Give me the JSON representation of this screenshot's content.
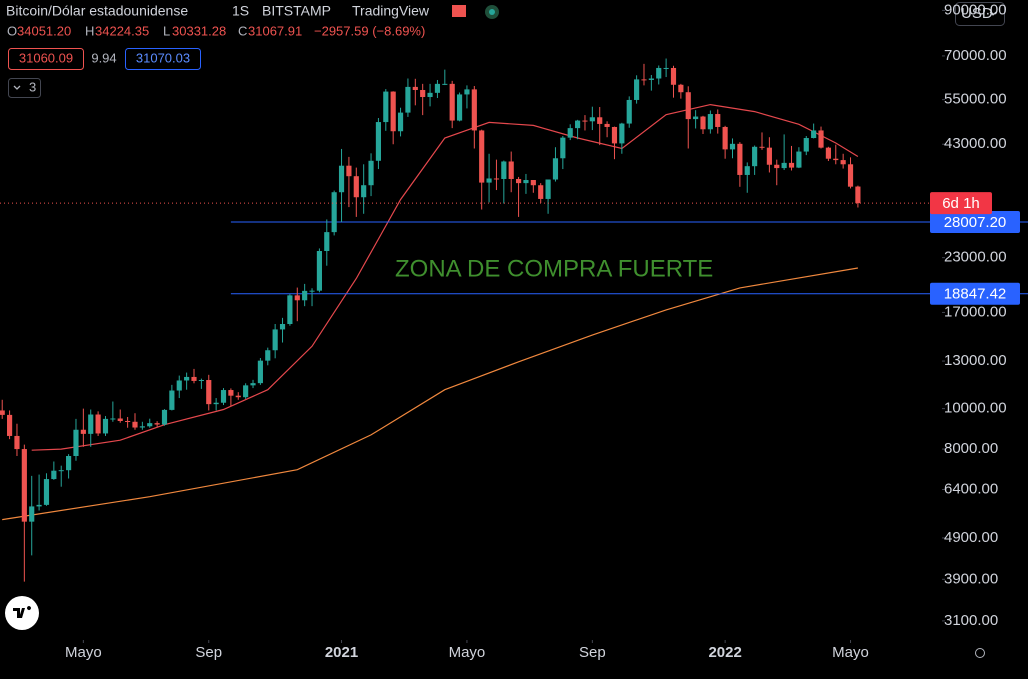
{
  "header": {
    "symbol": "Bitcoin/Dólar estadounidense",
    "interval": "1S",
    "exchange": "BITSTAMP",
    "source": "TradingView",
    "o_label": "O",
    "o_value": "34051.20",
    "h_label": "H",
    "h_value": "34224.35",
    "l_label": "L",
    "l_value": "30331.28",
    "c_label": "C",
    "c_value": "31067.91",
    "change": "−2957.59 (−8.69%)",
    "bid": "31060.09",
    "spread": "9.94",
    "ask": "31070.03",
    "indicator_count": "3",
    "currency": "USD"
  },
  "chart_data": {
    "type": "candlestick",
    "log_scale": true,
    "up_color": "#26a69a",
    "down_color": "#ef5350",
    "annotation": "ZONA DE COMPRA FUERTE",
    "countdown": "6d 1h",
    "ylim": [
      2790,
      95300
    ],
    "yticks": [
      {
        "value": 3100,
        "label": "3100.00"
      },
      {
        "value": 3900,
        "label": "3900.00"
      },
      {
        "value": 4900,
        "label": "4900.00"
      },
      {
        "value": 6400,
        "label": "6400.00"
      },
      {
        "value": 8000,
        "label": "8000.00"
      },
      {
        "value": 10000,
        "label": "10000.00"
      },
      {
        "value": 13000,
        "label": "13000.00"
      },
      {
        "value": 17000,
        "label": "17000.00"
      },
      {
        "value": 23000,
        "label": "23000.00"
      },
      {
        "value": 43000,
        "label": "43000.00"
      },
      {
        "value": 55000,
        "label": "55000.00"
      },
      {
        "value": 70000,
        "label": "70000.00"
      },
      {
        "value": 90000,
        "label": "90000.00"
      }
    ],
    "xlim": [
      -0.3,
      127.4
    ],
    "xticks": [
      {
        "value": 11,
        "label": "Mayo"
      },
      {
        "value": 28,
        "label": "Sep"
      },
      {
        "value": 46,
        "label": "2021"
      },
      {
        "value": 63,
        "label": "Mayo"
      },
      {
        "value": 80,
        "label": "Sep"
      },
      {
        "value": 98,
        "label": "2022"
      },
      {
        "value": 115,
        "label": "Mayo"
      }
    ],
    "open": [
      9900,
      9660,
      8600,
      8000,
      5360,
      5830,
      5880,
      6780,
      7100,
      7120,
      7700,
      8900,
      8700,
      9680,
      8720,
      9450,
      9470,
      9340,
      9300,
      9010,
      9070,
      9230,
      9160,
      9930,
      11050,
      11680,
      11910,
      11650,
      11710,
      10250,
      10330,
      11080,
      10740,
      10650,
      11370,
      11510,
      13030,
      13800,
      15480,
      15950,
      18680,
      18180,
      19150,
      19170,
      23860,
      26480,
      33000,
      38200,
      36050,
      32100,
      34300,
      39250,
      48600,
      57500,
      46200,
      51200,
      59000,
      58000,
      55800,
      57100,
      60000,
      60000,
      49000,
      56600,
      58200,
      46400,
      34800,
      35600,
      35500,
      39100,
      35500,
      34700,
      35300,
      34300,
      31800,
      35400,
      39800,
      44600,
      47000,
      49000,
      48800,
      49900,
      48100,
      47300,
      43200,
      48200,
      54900,
      61500,
      61300,
      61800,
      65500,
      65500,
      59700,
      57300,
      49400,
      50100,
      46700,
      50800,
      47300,
      41800,
      43100,
      36300,
      38100,
      42400,
      42200,
      38400,
      37700,
      38800,
      37800,
      41300,
      44500,
      46400,
      42200,
      39700,
      39400,
      38500,
      34051.2
    ],
    "high": [
      10500,
      9900,
      9200,
      8200,
      6900,
      6950,
      7000,
      7470,
      7300,
      7780,
      9450,
      10000,
      9950,
      9850,
      9600,
      10400,
      9950,
      9550,
      9750,
      9300,
      9460,
      9330,
      9970,
      11400,
      12000,
      12200,
      12450,
      11800,
      12050,
      10600,
      11200,
      11180,
      10950,
      11500,
      11720,
      13220,
      14000,
      15950,
      16500,
      18800,
      19500,
      19900,
      19430,
      24200,
      28400,
      33300,
      41900,
      40100,
      37800,
      38500,
      40900,
      49700,
      58300,
      57600,
      52600,
      61800,
      61700,
      60000,
      60000,
      61300,
      64900,
      61000,
      57200,
      59500,
      59300,
      46600,
      40800,
      39500,
      39300,
      41300,
      35900,
      36500,
      35300,
      34700,
      35400,
      42300,
      45000,
      48000,
      49200,
      50500,
      52900,
      52800,
      48800,
      47400,
      48400,
      56000,
      62900,
      67000,
      63000,
      66400,
      69000,
      66300,
      60000,
      59200,
      51900,
      50300,
      51800,
      52100,
      47600,
      44400,
      43500,
      38900,
      42700,
      45900,
      44700,
      39500,
      45400,
      42600,
      42300,
      45000,
      48200,
      47400,
      42400,
      42900,
      40800,
      40000,
      34224.35
    ],
    "low": [
      9450,
      8450,
      7700,
      3850,
      4450,
      5700,
      5850,
      6750,
      6500,
      6800,
      7500,
      8100,
      8100,
      8600,
      8600,
      9300,
      9250,
      9000,
      8900,
      8900,
      9000,
      9050,
      9100,
      9900,
      10600,
      11100,
      11500,
      11150,
      9900,
      9900,
      10200,
      10140,
      10500,
      10550,
      11200,
      11400,
      12700,
      13200,
      14400,
      15800,
      16200,
      17600,
      17600,
      19000,
      22000,
      26000,
      28000,
      30400,
      28800,
      29300,
      32300,
      37500,
      46300,
      43000,
      44900,
      50000,
      53300,
      50500,
      53000,
      55500,
      59600,
      47000,
      48800,
      52400,
      42000,
      30000,
      31200,
      33400,
      31000,
      33000,
      28800,
      32700,
      32900,
      31100,
      29300,
      35000,
      37500,
      44000,
      44200,
      46400,
      46500,
      42800,
      44700,
      39600,
      40800,
      47100,
      53800,
      59500,
      57800,
      59800,
      62300,
      55600,
      55300,
      42000,
      46900,
      45500,
      45600,
      45600,
      39700,
      39800,
      34000,
      32900,
      36300,
      41700,
      36800,
      34300,
      37300,
      37200,
      37700,
      40500,
      44400,
      42000,
      39200,
      38500,
      37600,
      33700,
      30331.28
    ],
    "close": [
      9660,
      8600,
      8000,
      5360,
      5830,
      5880,
      6780,
      7100,
      7120,
      7700,
      8900,
      8700,
      9680,
      8720,
      9450,
      9470,
      9340,
      9300,
      9010,
      9070,
      9230,
      9160,
      9930,
      11050,
      11680,
      11910,
      11650,
      11710,
      10250,
      10330,
      11080,
      10740,
      10650,
      11370,
      11510,
      13030,
      13800,
      15480,
      15950,
      18680,
      18180,
      19150,
      19170,
      23860,
      26480,
      33000,
      38200,
      36050,
      32100,
      34300,
      39250,
      48600,
      57500,
      46200,
      51200,
      59000,
      58000,
      55800,
      57100,
      60000,
      60000,
      49000,
      56600,
      58200,
      46400,
      34800,
      35600,
      35500,
      39100,
      35500,
      34700,
      35300,
      34300,
      31800,
      35400,
      39800,
      44600,
      47000,
      49000,
      48800,
      49900,
      48100,
      47300,
      43200,
      48200,
      54900,
      61500,
      61300,
      61800,
      65500,
      65500,
      59700,
      57300,
      49400,
      50100,
      46700,
      50800,
      47300,
      41800,
      43100,
      36300,
      38100,
      42400,
      42200,
      38400,
      37700,
      38800,
      37800,
      41300,
      44500,
      46400,
      42200,
      39700,
      39400,
      38500,
      34025,
      31067.91
    ],
    "lines": [
      {
        "color": "#e5484d",
        "x": [
          4,
          8,
          16,
          22,
          30,
          36,
          42,
          48,
          54,
          60,
          66,
          72,
          78,
          84,
          90,
          96,
          102,
          108,
          113,
          116
        ],
        "values": [
          7950,
          8000,
          8400,
          9150,
          9950,
          11100,
          14100,
          20500,
          31700,
          44500,
          48500,
          47700,
          44500,
          42000,
          50600,
          53500,
          51500,
          48000,
          43300,
          40200
        ]
      },
      {
        "color": "#f0883e",
        "x": [
          0,
          20,
          40,
          50,
          60,
          70,
          80,
          90,
          100,
          116
        ],
        "values": [
          5420,
          6150,
          7140,
          8650,
          11100,
          12950,
          15000,
          17240,
          19470,
          21730
        ]
      }
    ],
    "levels": [
      {
        "value": 28007.2,
        "label": "28007.20",
        "color": "#2962ff"
      },
      {
        "value": 18847.42,
        "label": "18847.42",
        "color": "#2962ff"
      }
    ]
  }
}
